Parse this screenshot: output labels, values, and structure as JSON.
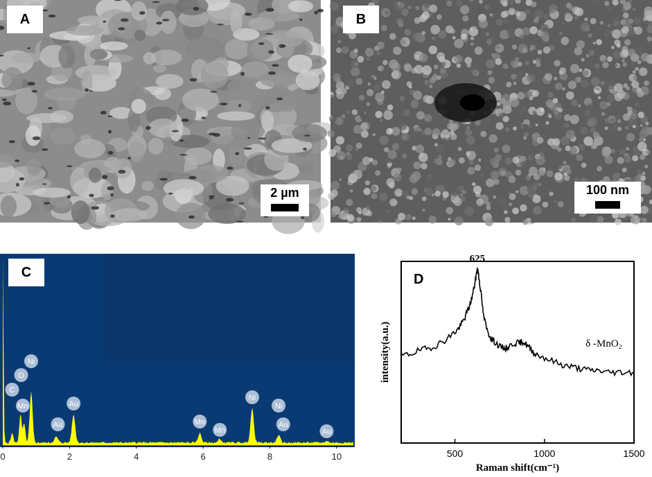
{
  "panels": {
    "a": {
      "label": "A",
      "scale_bar": "2 µm"
    },
    "b": {
      "label": "B",
      "scale_bar": "100 nm"
    },
    "c": {
      "label": "C"
    },
    "d": {
      "label": "D"
    }
  },
  "chart_data": [
    {
      "type": "area",
      "panel": "C",
      "xlim": [
        0,
        10.5
      ],
      "x_ticks": [
        "0",
        "2",
        "4",
        "6",
        "8",
        "10"
      ],
      "colors": {
        "background": "#0a3a73",
        "spectrum": "#ffff00"
      },
      "peak_labels": [
        {
          "text": "C",
          "x": 0.28
        },
        {
          "text": "O",
          "x": 0.55
        },
        {
          "text": "Ni",
          "x": 0.85
        },
        {
          "text": "Mn",
          "x": 0.6
        },
        {
          "text": "Au",
          "x": 2.12
        },
        {
          "text": "Au",
          "x": 1.65
        },
        {
          "text": "Mn",
          "x": 5.9
        },
        {
          "text": "Mn",
          "x": 6.5
        },
        {
          "text": "Ni",
          "x": 7.47
        },
        {
          "text": "Ni",
          "x": 8.26
        },
        {
          "text": "Au",
          "x": 8.4
        },
        {
          "text": "Au",
          "x": 9.7
        }
      ],
      "peaks": [
        {
          "x": 0.0,
          "height": 0.98,
          "width": 0.03
        },
        {
          "x": 0.28,
          "height": 0.05,
          "width": 0.05
        },
        {
          "x": 0.53,
          "height": 0.15,
          "width": 0.05
        },
        {
          "x": 0.64,
          "height": 0.1,
          "width": 0.05
        },
        {
          "x": 0.85,
          "height": 0.27,
          "width": 0.06
        },
        {
          "x": 1.6,
          "height": 0.03,
          "width": 0.08
        },
        {
          "x": 2.12,
          "height": 0.15,
          "width": 0.07
        },
        {
          "x": 5.9,
          "height": 0.05,
          "width": 0.07
        },
        {
          "x": 6.5,
          "height": 0.02,
          "width": 0.06
        },
        {
          "x": 7.47,
          "height": 0.18,
          "width": 0.07
        },
        {
          "x": 8.26,
          "height": 0.04,
          "width": 0.07
        },
        {
          "x": 9.7,
          "height": 0.01,
          "width": 0.06
        }
      ]
    },
    {
      "type": "line",
      "panel": "D",
      "xlabel": "Raman shift(cm⁻¹)",
      "ylabel": "intensity(a.u.)",
      "xlim": [
        200,
        1500
      ],
      "x_ticks": [
        500,
        1000,
        1500
      ],
      "peak_annotation": {
        "text": "625",
        "x": 625
      },
      "series_label": "δ -MnO₂",
      "x": [
        200,
        250,
        300,
        350,
        400,
        450,
        500,
        520,
        540,
        560,
        580,
        595,
        610,
        620,
        625,
        632,
        645,
        660,
        680,
        700,
        720,
        750,
        780,
        800,
        830,
        860,
        880,
        900,
        920,
        950,
        1000,
        1050,
        1100,
        1150,
        1200,
        1250,
        1300,
        1350,
        1400,
        1450,
        1500
      ],
      "y": [
        0.48,
        0.49,
        0.51,
        0.52,
        0.54,
        0.57,
        0.61,
        0.63,
        0.66,
        0.7,
        0.75,
        0.8,
        0.87,
        0.93,
        0.96,
        0.93,
        0.83,
        0.7,
        0.62,
        0.58,
        0.56,
        0.53,
        0.52,
        0.53,
        0.55,
        0.55,
        0.56,
        0.54,
        0.52,
        0.49,
        0.47,
        0.45,
        0.43,
        0.42,
        0.41,
        0.4,
        0.4,
        0.39,
        0.39,
        0.39,
        0.39
      ]
    }
  ]
}
